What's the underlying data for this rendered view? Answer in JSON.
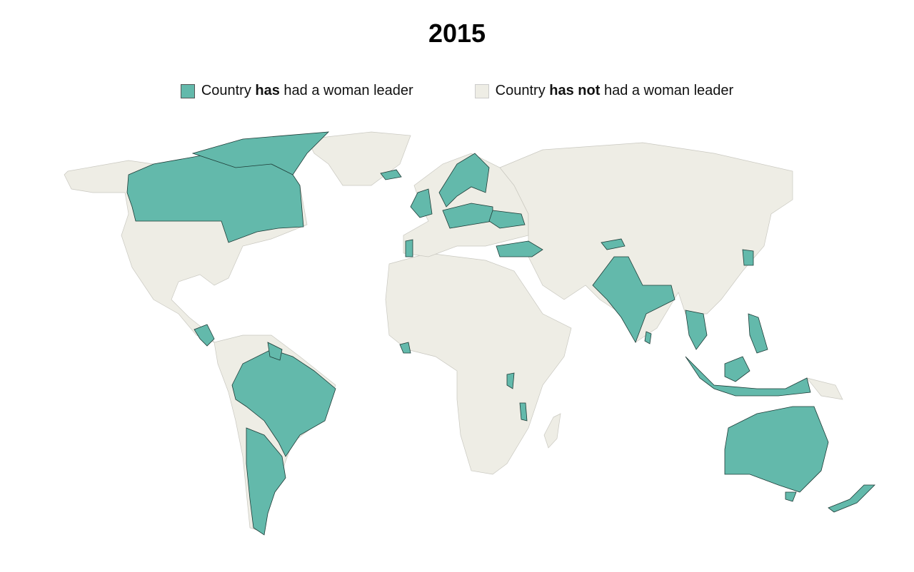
{
  "title": "2015",
  "legend": [
    {
      "pre": "Country ",
      "bold": "has",
      "post": " had a woman leader",
      "color": "#63b9ab"
    },
    {
      "pre": "Country ",
      "bold": "has not",
      "post": " had a woman leader",
      "color": "#eeede5"
    }
  ]
}
